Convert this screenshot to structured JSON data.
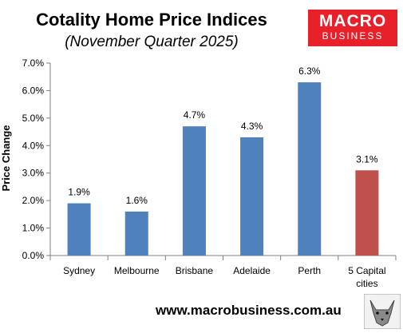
{
  "header": {
    "title": "Cotality Home Price Indices",
    "subtitle": "(November Quarter 2025)"
  },
  "logo": {
    "line1": "MACRO",
    "line2": "BUSINESS",
    "color": "#e8202a"
  },
  "footer": {
    "url": "www.macrobusiness.com.au"
  },
  "chart_data": {
    "type": "bar",
    "ylabel": "Price Change",
    "categories": [
      "Sydney",
      "Melbourne",
      "Brisbane",
      "Adelaide",
      "Perth",
      "5 Capital cities"
    ],
    "category_lines": [
      [
        "Sydney"
      ],
      [
        "Melbourne"
      ],
      [
        "Brisbane"
      ],
      [
        "Adelaide"
      ],
      [
        "Perth"
      ],
      [
        "5 Capital",
        "cities"
      ]
    ],
    "values": [
      1.9,
      1.6,
      4.7,
      4.3,
      6.3,
      3.1
    ],
    "value_labels": [
      "1.9%",
      "1.6%",
      "4.7%",
      "4.3%",
      "6.3%",
      "3.1%"
    ],
    "colors": [
      "#4f81bd",
      "#4f81bd",
      "#4f81bd",
      "#4f81bd",
      "#4f81bd",
      "#c0504d"
    ],
    "ylim": [
      0,
      7
    ],
    "yticks": [
      0,
      1,
      2,
      3,
      4,
      5,
      6,
      7
    ],
    "ytick_labels": [
      "0.0%",
      "1.0%",
      "2.0%",
      "3.0%",
      "4.0%",
      "5.0%",
      "6.0%",
      "7.0%"
    ],
    "grid": false,
    "legend": "none"
  }
}
